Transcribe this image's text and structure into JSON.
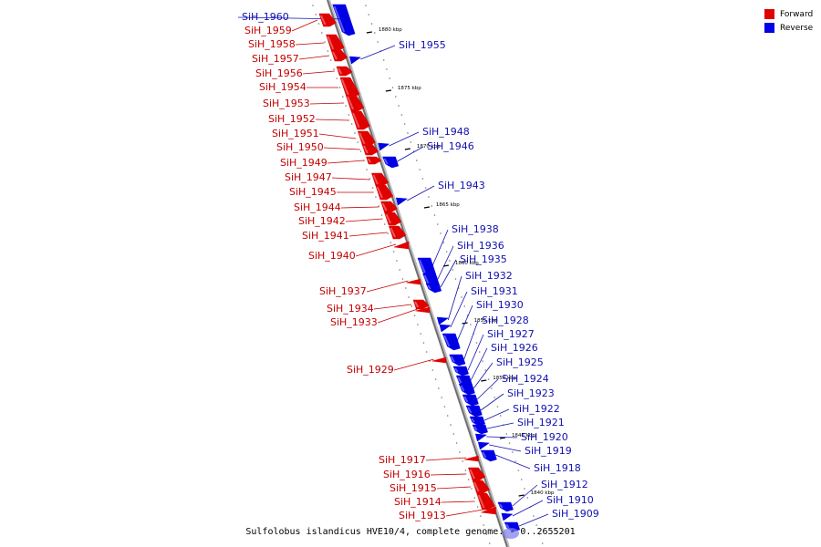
{
  "legend": {
    "forward_label": "Forward",
    "reverse_label": "Reverse",
    "forward_color": "#e00000",
    "reverse_color": "#0000e6"
  },
  "colors": {
    "forward": "#e00000",
    "reverse": "#0000e6",
    "forward_label": "#c40000",
    "reverse_label": "#1010b0"
  },
  "caption": "Sulfolobus islandicus HVE10/4, complete genome. - 0..2655201",
  "ticks": [
    "1880 kbp",
    "1875 kbp",
    "1870 kbp",
    "1865 kbp",
    "1860 kbp",
    "1855 kbp",
    "1850 kbp",
    "1845 kbp",
    "1840 kbp"
  ],
  "genes": [
    {
      "name": "SiH_1960",
      "strand": "reverse"
    },
    {
      "name": "SiH_1959",
      "strand": "forward"
    },
    {
      "name": "SiH_1958",
      "strand": "forward"
    },
    {
      "name": "SiH_1957",
      "strand": "forward"
    },
    {
      "name": "SiH_1956",
      "strand": "forward"
    },
    {
      "name": "SiH_1955",
      "strand": "reverse"
    },
    {
      "name": "SiH_1954",
      "strand": "forward"
    },
    {
      "name": "SiH_1953",
      "strand": "forward"
    },
    {
      "name": "SiH_1952",
      "strand": "forward"
    },
    {
      "name": "SiH_1951",
      "strand": "forward"
    },
    {
      "name": "SiH_1950",
      "strand": "forward"
    },
    {
      "name": "SiH_1949",
      "strand": "forward"
    },
    {
      "name": "SiH_1948",
      "strand": "reverse"
    },
    {
      "name": "SiH_1947",
      "strand": "forward"
    },
    {
      "name": "SiH_1946",
      "strand": "reverse"
    },
    {
      "name": "SiH_1945",
      "strand": "forward"
    },
    {
      "name": "SiH_1944",
      "strand": "forward"
    },
    {
      "name": "SiH_1943",
      "strand": "reverse"
    },
    {
      "name": "SiH_1942",
      "strand": "forward"
    },
    {
      "name": "SiH_1941",
      "strand": "forward"
    },
    {
      "name": "SiH_1940",
      "strand": "forward"
    },
    {
      "name": "SiH_1938",
      "strand": "reverse"
    },
    {
      "name": "SiH_1937",
      "strand": "forward"
    },
    {
      "name": "SiH_1936",
      "strand": "reverse"
    },
    {
      "name": "SiH_1935",
      "strand": "reverse"
    },
    {
      "name": "SiH_1934",
      "strand": "forward"
    },
    {
      "name": "SiH_1933",
      "strand": "forward"
    },
    {
      "name": "SiH_1932",
      "strand": "reverse"
    },
    {
      "name": "SiH_1931",
      "strand": "reverse"
    },
    {
      "name": "SiH_1930",
      "strand": "reverse"
    },
    {
      "name": "SiH_1929",
      "strand": "forward"
    },
    {
      "name": "SiH_1928",
      "strand": "reverse"
    },
    {
      "name": "SiH_1927",
      "strand": "reverse"
    },
    {
      "name": "SiH_1926",
      "strand": "reverse"
    },
    {
      "name": "SiH_1925",
      "strand": "reverse"
    },
    {
      "name": "SiH_1924",
      "strand": "reverse"
    },
    {
      "name": "SiH_1923",
      "strand": "reverse"
    },
    {
      "name": "SiH_1922",
      "strand": "reverse"
    },
    {
      "name": "SiH_1921",
      "strand": "reverse"
    },
    {
      "name": "SiH_1920",
      "strand": "reverse"
    },
    {
      "name": "SiH_1919",
      "strand": "reverse"
    },
    {
      "name": "SiH_1918",
      "strand": "reverse"
    },
    {
      "name": "SiH_1917",
      "strand": "forward"
    },
    {
      "name": "SiH_1916",
      "strand": "forward"
    },
    {
      "name": "SiH_1915",
      "strand": "forward"
    },
    {
      "name": "SiH_1914",
      "strand": "forward"
    },
    {
      "name": "SiH_1913",
      "strand": "forward"
    },
    {
      "name": "SiH_1912",
      "strand": "reverse"
    },
    {
      "name": "SiH_1910",
      "strand": "reverse"
    },
    {
      "name": "SiH_1909",
      "strand": "reverse"
    }
  ]
}
